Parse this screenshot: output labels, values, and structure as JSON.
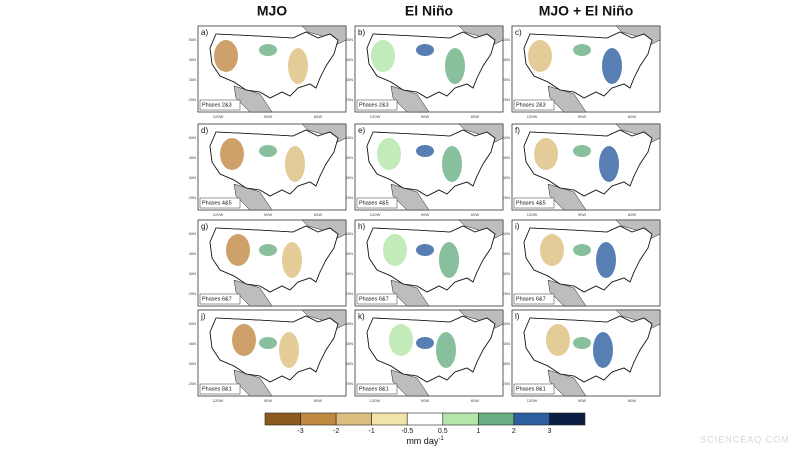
{
  "figure": {
    "column_titles": [
      "MJO",
      "El Niño",
      "MJO + El Niño"
    ],
    "panel_letters": [
      "a)",
      "b)",
      "c)",
      "d)",
      "e)",
      "f)",
      "g)",
      "h)",
      "i)",
      "j)",
      "k)",
      "l)"
    ],
    "row_labels": [
      "Phases 2&3",
      "Phases 4&5",
      "Phases 6&7",
      "Phases 8&1"
    ],
    "lat_labels": [
      "50N",
      "40N",
      "30N",
      "20N"
    ],
    "lon_labels": [
      "120W",
      "90W",
      "60W"
    ],
    "colorbar": {
      "ticks": [
        -3,
        -2,
        -1,
        -0.5,
        0.5,
        1,
        2,
        3
      ],
      "colors": [
        "#8c5a1e",
        "#c08a43",
        "#dcbf7e",
        "#f2e3a8",
        "#ffffff",
        "#b3e6a8",
        "#6aaf84",
        "#2d5fa0",
        "#0b1f45"
      ],
      "label": "mm day",
      "label_exponent": "-1"
    },
    "watermark": "SCIENCEAQ.COM"
  }
}
